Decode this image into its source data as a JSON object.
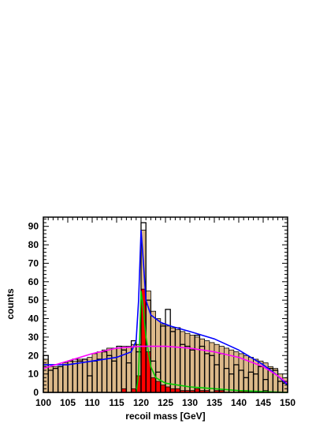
{
  "chart_data": {
    "type": "bar",
    "xlabel": "recoil mass [GeV]",
    "ylabel": "counts",
    "xlim": [
      100,
      150
    ],
    "ylim": [
      0,
      95
    ],
    "x_ticks": [
      100,
      105,
      110,
      115,
      120,
      125,
      130,
      135,
      140,
      145,
      150
    ],
    "y_ticks": [
      0,
      10,
      20,
      30,
      40,
      50,
      60,
      70,
      80,
      90
    ],
    "bin_width": 1,
    "bin_starts": [
      100,
      101,
      102,
      103,
      104,
      105,
      106,
      107,
      108,
      109,
      110,
      111,
      112,
      113,
      114,
      115,
      116,
      117,
      118,
      119,
      120,
      121,
      122,
      123,
      124,
      125,
      126,
      127,
      128,
      129,
      130,
      131,
      132,
      133,
      134,
      135,
      136,
      137,
      138,
      139,
      140,
      141,
      142,
      143,
      144,
      145,
      146,
      147,
      148,
      149
    ],
    "series": [
      {
        "name": "",
        "style": "open-histogram",
        "values": [
          20,
          12,
          13,
          14,
          15,
          17,
          18,
          17,
          18,
          9,
          17,
          18,
          22,
          20,
          17,
          25,
          23,
          16,
          28,
          22,
          92,
          50,
          17,
          11,
          36,
          45,
          33,
          35,
          26,
          25,
          23,
          31,
          25,
          21,
          20,
          15,
          21,
          13,
          10,
          15,
          12,
          8,
          11,
          10,
          14,
          7,
          13,
          12,
          6,
          5
        ]
      },
      {
        "name": "",
        "style": "filled-histogram",
        "color": "#dcb98a",
        "values": [
          18,
          14,
          14,
          14,
          16,
          17,
          17,
          18,
          18,
          19,
          21,
          22,
          23,
          24,
          24,
          24,
          25,
          25,
          26,
          26,
          88,
          55,
          44,
          40,
          37,
          36,
          35,
          34,
          33,
          32,
          31,
          30,
          29,
          28,
          27,
          26,
          25,
          24,
          23,
          22,
          21,
          20,
          19,
          18,
          17,
          16,
          14,
          13,
          10,
          8
        ]
      },
      {
        "name": "",
        "style": "filled-histogram",
        "color": "#ff0000",
        "values": [
          0,
          0,
          0,
          0,
          0,
          0,
          0,
          0,
          0,
          0,
          0,
          0,
          0,
          0,
          0,
          0,
          2,
          0,
          2,
          9,
          56,
          22,
          8,
          6,
          4,
          3,
          2,
          2,
          1,
          1,
          1,
          2,
          1,
          1,
          0,
          1,
          1,
          0,
          0,
          0,
          1,
          1,
          0,
          0,
          0,
          1,
          0,
          0,
          0,
          0
        ]
      }
    ],
    "curves": [
      {
        "name": "",
        "color": "#0000ff",
        "points": [
          [
            100,
            15
          ],
          [
            105,
            15
          ],
          [
            110,
            17
          ],
          [
            115,
            19
          ],
          [
            118,
            22
          ],
          [
            119,
            28
          ],
          [
            119.5,
            50
          ],
          [
            120,
            88
          ],
          [
            120.5,
            70
          ],
          [
            121,
            50
          ],
          [
            122,
            42
          ],
          [
            124,
            38
          ],
          [
            126,
            36
          ],
          [
            130,
            33
          ],
          [
            135,
            29
          ],
          [
            140,
            23
          ],
          [
            145,
            15
          ],
          [
            148,
            9
          ],
          [
            150,
            4
          ]
        ]
      },
      {
        "name": "",
        "color": "#00cc00",
        "points": [
          [
            119,
            0
          ],
          [
            119.5,
            10
          ],
          [
            120,
            55
          ],
          [
            120.5,
            45
          ],
          [
            121,
            30
          ],
          [
            122,
            14
          ],
          [
            123,
            8
          ],
          [
            125,
            5
          ],
          [
            130,
            3
          ],
          [
            140,
            1
          ],
          [
            150,
            0
          ]
        ]
      },
      {
        "name": "",
        "color": "#ff00ff",
        "points": [
          [
            100,
            13
          ],
          [
            105,
            17
          ],
          [
            110,
            21
          ],
          [
            115,
            24
          ],
          [
            120,
            25
          ],
          [
            125,
            25
          ],
          [
            130,
            24
          ],
          [
            135,
            22
          ],
          [
            140,
            19
          ],
          [
            145,
            14
          ],
          [
            148,
            9
          ],
          [
            150,
            5
          ]
        ]
      }
    ]
  }
}
